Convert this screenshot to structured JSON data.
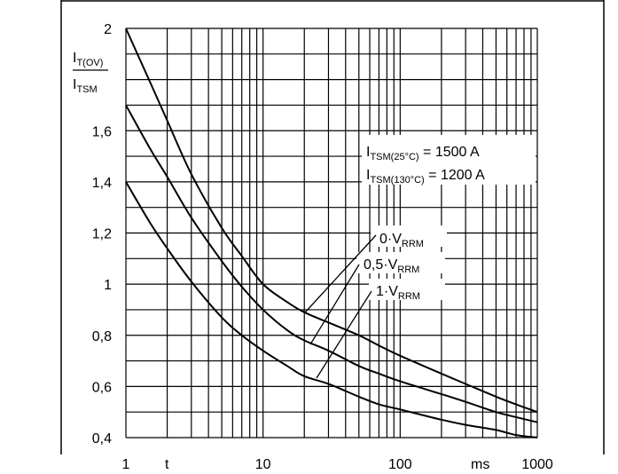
{
  "chart_data": {
    "type": "line",
    "ylabel_numerator": {
      "base": "I",
      "sub": "T(OV)"
    },
    "ylabel_denominator": {
      "base": "I",
      "sub": "TSM"
    },
    "xlabel_symbol": "t",
    "xlabel_unit": "ms",
    "xscale": "log",
    "xlim": [
      1,
      1000
    ],
    "ylim": [
      0.4,
      2.0
    ],
    "x_ticks": [
      {
        "value": 1,
        "label": "1"
      },
      {
        "value": 10,
        "label": "10"
      },
      {
        "value": 100,
        "label": "100"
      },
      {
        "value": 1000,
        "label": "1000"
      }
    ],
    "y_ticks": [
      {
        "value": 2.0,
        "label": "2"
      },
      {
        "value": 1.6,
        "label": "1,6"
      },
      {
        "value": 1.4,
        "label": "1,4"
      },
      {
        "value": 1.2,
        "label": "1,2"
      },
      {
        "value": 1.0,
        "label": "1"
      },
      {
        "value": 0.8,
        "label": "0,8"
      },
      {
        "value": 0.6,
        "label": "0,6"
      },
      {
        "value": 0.4,
        "label": "0,4"
      }
    ],
    "grid": true,
    "annotations": [
      {
        "base": "I",
        "sub": "TSM(25°C)",
        "text": " = 1500 A"
      },
      {
        "base": "I",
        "sub": "TSM(130°C)",
        "text": " = 1200 A"
      }
    ],
    "series": [
      {
        "name": {
          "prefix": "0·V",
          "sub": "RRM"
        },
        "x": [
          1,
          1.5,
          2,
          3,
          5,
          7,
          10,
          15,
          20,
          30,
          50,
          70,
          100,
          200,
          300,
          500,
          700,
          1000
        ],
        "y": [
          2.0,
          1.79,
          1.64,
          1.43,
          1.22,
          1.11,
          1.0,
          0.93,
          0.89,
          0.85,
          0.8,
          0.76,
          0.72,
          0.65,
          0.61,
          0.56,
          0.53,
          0.5
        ]
      },
      {
        "name": {
          "prefix": "0,5·V",
          "sub": "RRM"
        },
        "x": [
          1,
          1.5,
          2,
          3,
          5,
          7,
          10,
          15,
          20,
          30,
          50,
          70,
          100,
          200,
          300,
          500,
          700,
          1000
        ],
        "y": [
          1.7,
          1.53,
          1.42,
          1.26,
          1.09,
          0.99,
          0.9,
          0.82,
          0.78,
          0.74,
          0.68,
          0.65,
          0.62,
          0.57,
          0.54,
          0.5,
          0.48,
          0.46
        ]
      },
      {
        "name": {
          "prefix": "1·V",
          "sub": "RRM"
        },
        "x": [
          1,
          1.5,
          2,
          3,
          5,
          7,
          10,
          15,
          20,
          30,
          50,
          70,
          100,
          200,
          300,
          500,
          700,
          1000
        ],
        "y": [
          1.4,
          1.24,
          1.14,
          1.01,
          0.87,
          0.8,
          0.74,
          0.68,
          0.64,
          0.61,
          0.56,
          0.53,
          0.51,
          0.47,
          0.45,
          0.43,
          0.41,
          0.4
        ]
      }
    ]
  }
}
